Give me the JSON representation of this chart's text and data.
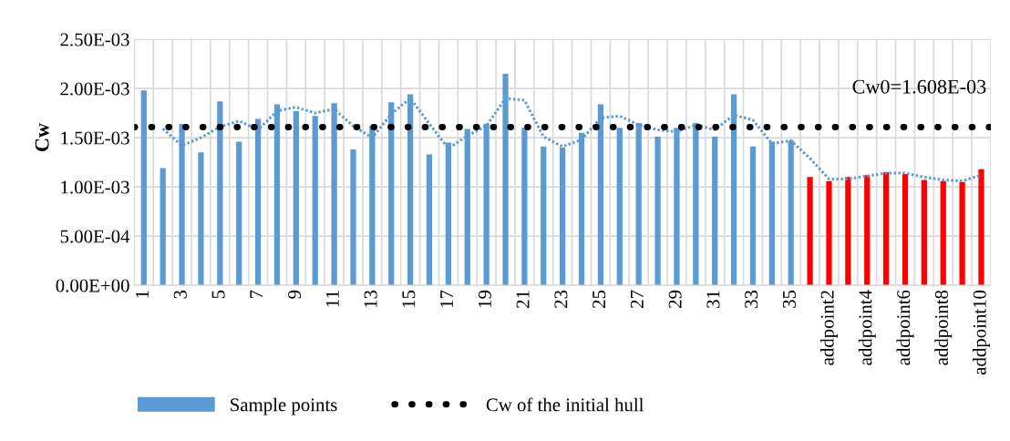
{
  "chart_data": {
    "type": "bar",
    "ylabel": "Cw",
    "categories": [
      "1",
      null,
      "3",
      null,
      "5",
      null,
      "7",
      null,
      "9",
      null,
      "11",
      null,
      "13",
      null,
      "15",
      null,
      "17",
      null,
      "19",
      null,
      "21",
      null,
      "23",
      null,
      "25",
      null,
      "27",
      null,
      "29",
      null,
      "31",
      null,
      "33",
      null,
      "35",
      null,
      "addpoint2",
      null,
      "addpoint4",
      null,
      "addpoint6",
      null,
      "addpoint8",
      null,
      "addpoint10"
    ],
    "series": [
      {
        "name": "Sample points",
        "color": "#5b9bd5",
        "values": [
          0.00198,
          0.00119,
          0.00164,
          0.00135,
          0.00187,
          0.00146,
          0.00169,
          0.00184,
          0.00177,
          0.00172,
          0.00185,
          0.00138,
          0.00162,
          0.00186,
          0.00194,
          0.00133,
          0.00145,
          0.00159,
          0.00164,
          0.00215,
          0.0016,
          0.00141,
          0.0014,
          0.00155,
          0.00184,
          0.0016,
          0.00165,
          0.00151,
          0.0016,
          0.00165,
          0.00151,
          0.00194,
          0.00141,
          0.00146,
          0.00147,
          null,
          null,
          null,
          null,
          null,
          null,
          null,
          null,
          null,
          null
        ]
      },
      {
        "color": "#ff0000",
        "values": [
          null,
          null,
          null,
          null,
          null,
          null,
          null,
          null,
          null,
          null,
          null,
          null,
          null,
          null,
          null,
          null,
          null,
          null,
          null,
          null,
          null,
          null,
          null,
          null,
          null,
          null,
          null,
          null,
          null,
          null,
          null,
          null,
          null,
          null,
          null,
          0.0011,
          0.00106,
          0.0011,
          0.00112,
          0.00115,
          0.00113,
          0.00107,
          0.00106,
          0.00105,
          0.00118
        ]
      },
      {
        "type": "line",
        "color": "#5b9bd5",
        "line_style": "dotted",
        "values": [
          null,
          0.00159,
          0.00142,
          0.0015,
          0.00161,
          0.00167,
          0.00158,
          0.00177,
          0.00181,
          0.00175,
          0.00179,
          0.00162,
          0.0015,
          0.00174,
          0.0019,
          0.00164,
          0.00139,
          0.00152,
          0.00162,
          0.0019,
          0.00188,
          0.00151,
          0.00141,
          0.00148,
          0.0017,
          0.00172,
          0.00163,
          0.00158,
          0.00156,
          0.00163,
          0.00158,
          0.00173,
          0.00168,
          0.00144,
          0.00147,
          0.00129,
          0.00108,
          0.00108,
          0.00111,
          0.00114,
          0.00114,
          0.0011,
          0.00107,
          0.00106,
          0.00112
        ]
      }
    ],
    "ylim": [
      0,
      0.0025
    ],
    "yticks": [
      {
        "value": 0,
        "label": "0.00E+00"
      },
      {
        "value": 0.0005,
        "label": "5.00E-04"
      },
      {
        "value": 0.001,
        "label": "1.00E-03"
      },
      {
        "value": 0.0015,
        "label": "1.50E-03"
      },
      {
        "value": 0.002,
        "label": "2.00E-03"
      },
      {
        "value": 0.0025,
        "label": "2.50E-03"
      }
    ],
    "ref_lines": [
      {
        "axis": "y",
        "value": 0.001608,
        "label": "Cw of the initial hull",
        "color": "#000000",
        "line_style": "dotted"
      }
    ],
    "annotations": [
      "Cw0=1.608E-03"
    ],
    "grid": true,
    "legend": "bottom left"
  }
}
